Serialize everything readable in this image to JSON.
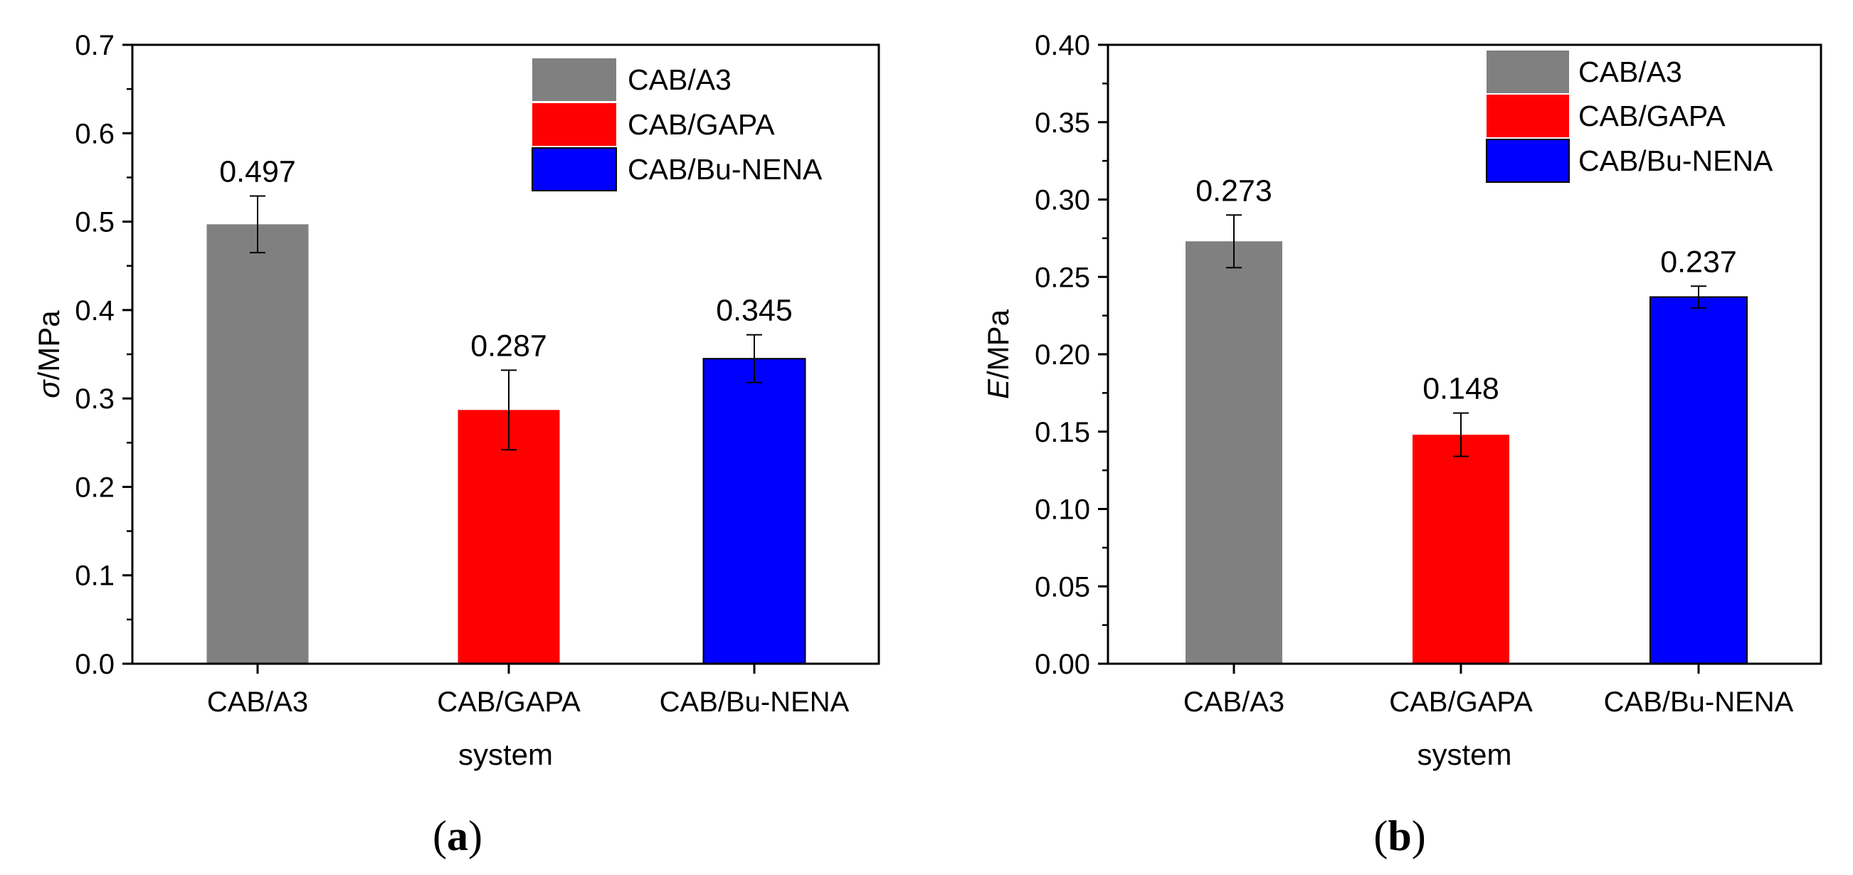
{
  "chart_data": [
    {
      "type": "bar",
      "panel_label": "(a)",
      "panel_letter": "a",
      "xlabel": "system",
      "ylabel_symbol": "σ",
      "ylabel_unit": "/MPa",
      "ylim": [
        0,
        0.7
      ],
      "yticks": [
        0.0,
        0.1,
        0.2,
        0.3,
        0.4,
        0.5,
        0.6,
        0.7
      ],
      "ytick_labels": [
        "0.0",
        "0.1",
        "0.2",
        "0.3",
        "0.4",
        "0.5",
        "0.6",
        "0.7"
      ],
      "categories": [
        "CAB/A3",
        "CAB/GAPA",
        "CAB/Bu-NENA"
      ],
      "values": [
        0.497,
        0.287,
        0.345
      ],
      "errors": [
        0.032,
        0.045,
        0.027
      ],
      "value_labels": [
        "0.497",
        "0.287",
        "0.345"
      ],
      "colors": [
        "#808080",
        "#ff0000",
        "#0000ff"
      ],
      "legend": [
        "CAB/A3",
        "CAB/GAPA",
        "CAB/Bu-NENA"
      ],
      "legend_position": "top-right"
    },
    {
      "type": "bar",
      "panel_label": "(b)",
      "panel_letter": "b",
      "xlabel": "system",
      "ylabel_symbol": "E",
      "ylabel_unit": "/MPa",
      "ylim": [
        0,
        0.4
      ],
      "yticks": [
        0.0,
        0.05,
        0.1,
        0.15,
        0.2,
        0.25,
        0.3,
        0.35,
        0.4
      ],
      "ytick_labels": [
        "0.00",
        "0.05",
        "0.10",
        "0.15",
        "0.20",
        "0.25",
        "0.30",
        "0.35",
        "0.40"
      ],
      "categories": [
        "CAB/A3",
        "CAB/GAPA",
        "CAB/Bu-NENA"
      ],
      "values": [
        0.273,
        0.148,
        0.237
      ],
      "errors": [
        0.017,
        0.014,
        0.007
      ],
      "value_labels": [
        "0.273",
        "0.148",
        "0.237"
      ],
      "colors": [
        "#808080",
        "#ff0000",
        "#0000ff"
      ],
      "legend": [
        "CAB/A3",
        "CAB/GAPA",
        "CAB/Bu-NENA"
      ],
      "legend_position": "top-right"
    }
  ]
}
